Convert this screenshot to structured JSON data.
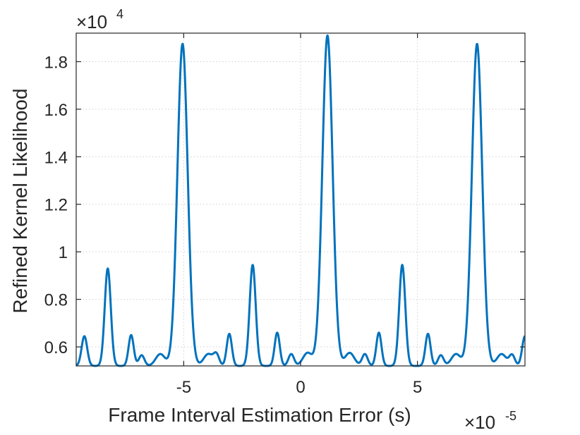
{
  "chart_data": {
    "type": "line",
    "title": "",
    "xlabel": "Frame Interval Estimation Error (s)",
    "ylabel": "Refined Kernel Likelihood",
    "x_multiplier": {
      "base": "×10",
      "exponent": "-5"
    },
    "y_multiplier": {
      "base": "×10",
      "exponent": "4"
    },
    "xlim": [
      -9.6,
      9.6
    ],
    "ylim": [
      0.52,
      1.92
    ],
    "xticks": [
      -5,
      0,
      5
    ],
    "xtick_labels": [
      "-5",
      "0",
      "5"
    ],
    "yticks": [
      0.6,
      0.8,
      1.0,
      1.2,
      1.4,
      1.6,
      1.8
    ],
    "ytick_labels": [
      "0.6",
      "0.8",
      "1",
      "1.2",
      "1.4",
      "1.6",
      "1.8"
    ],
    "grid": true,
    "line_color": "#0072BD",
    "series": [
      {
        "name": "",
        "peaks": [
          {
            "x": -9.25,
            "y": 0.645,
            "width": 0.12
          },
          {
            "x": -8.25,
            "y": 0.93,
            "width": 0.13
          },
          {
            "x": -7.25,
            "y": 0.65,
            "width": 0.11
          },
          {
            "x": -6.8,
            "y": 0.565,
            "width": 0.12
          },
          {
            "x": -6.0,
            "y": 0.57,
            "width": 0.2
          },
          {
            "x": -5.05,
            "y": 1.875,
            "width": 0.22
          },
          {
            "x": -3.95,
            "y": 0.57,
            "width": 0.2
          },
          {
            "x": -3.6,
            "y": 0.565,
            "width": 0.12
          },
          {
            "x": -3.05,
            "y": 0.655,
            "width": 0.11
          },
          {
            "x": -2.05,
            "y": 0.945,
            "width": 0.13
          },
          {
            "x": -1.0,
            "y": 0.66,
            "width": 0.11
          },
          {
            "x": -0.4,
            "y": 0.57,
            "width": 0.12
          },
          {
            "x": 0.3,
            "y": 0.575,
            "width": 0.2
          },
          {
            "x": 1.15,
            "y": 1.91,
            "width": 0.22
          },
          {
            "x": 2.1,
            "y": 0.575,
            "width": 0.2
          },
          {
            "x": 2.75,
            "y": 0.57,
            "width": 0.12
          },
          {
            "x": 3.35,
            "y": 0.66,
            "width": 0.11
          },
          {
            "x": 4.35,
            "y": 0.945,
            "width": 0.13
          },
          {
            "x": 5.45,
            "y": 0.655,
            "width": 0.11
          },
          {
            "x": 6.0,
            "y": 0.565,
            "width": 0.12
          },
          {
            "x": 6.65,
            "y": 0.57,
            "width": 0.2
          },
          {
            "x": 7.55,
            "y": 1.875,
            "width": 0.22
          },
          {
            "x": 8.6,
            "y": 0.57,
            "width": 0.2
          },
          {
            "x": 9.05,
            "y": 0.565,
            "width": 0.12
          },
          {
            "x": 9.6,
            "y": 0.645,
            "width": 0.12
          }
        ],
        "baseline": 0.52
      }
    ]
  }
}
